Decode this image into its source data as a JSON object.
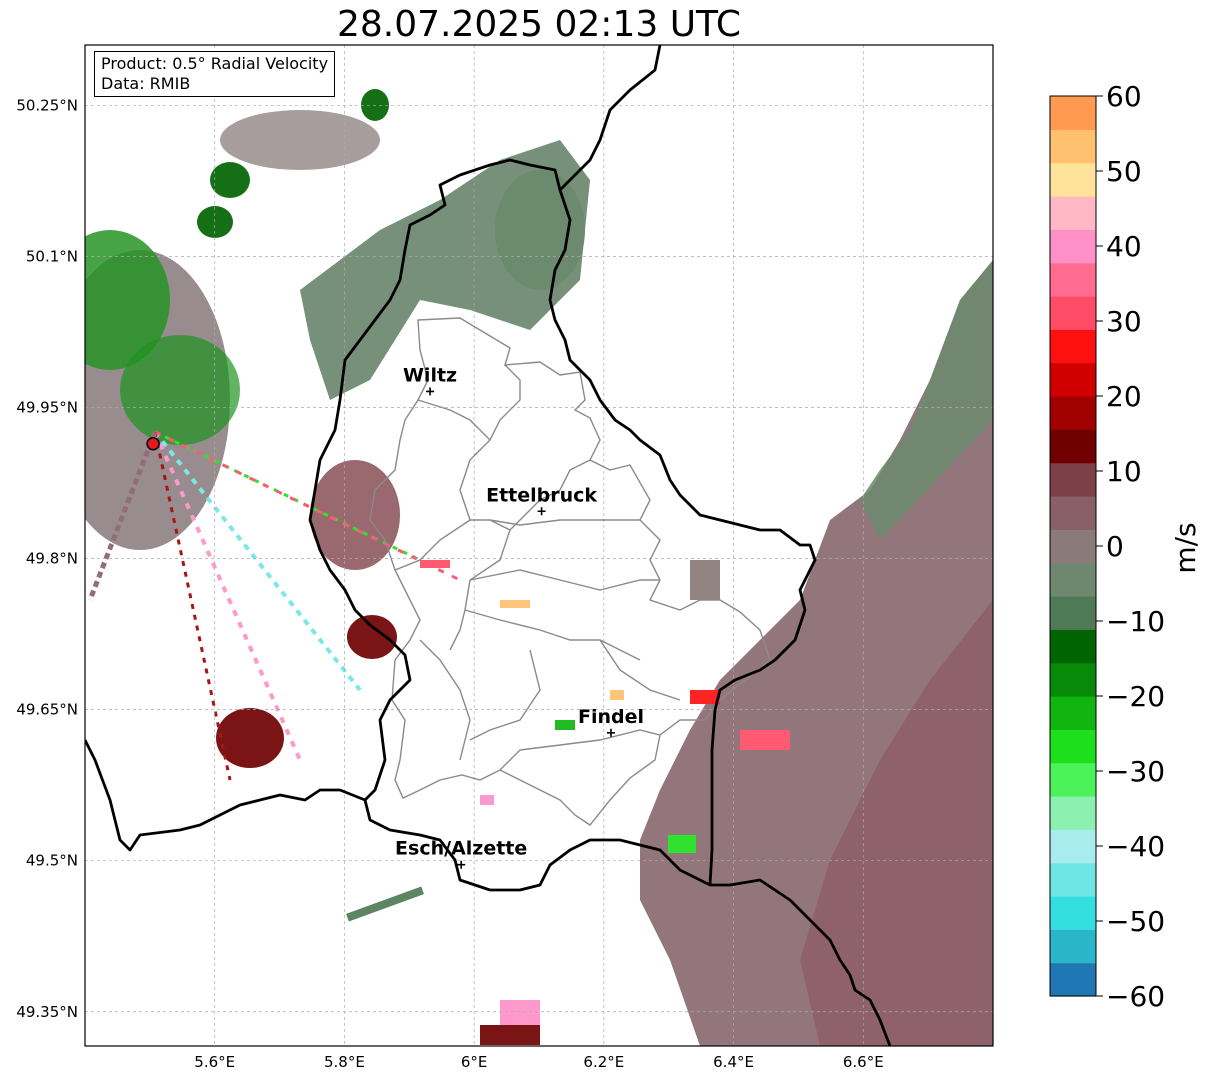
{
  "title": "28.07.2025 02:13 UTC",
  "info": {
    "product": "Product: 0.5° Radial Velocity",
    "source": "Data: RMIB"
  },
  "map": {
    "lon_range": [
      5.4,
      6.8
    ],
    "lat_range": [
      49.316,
      50.31
    ],
    "lon_ticks": [
      {
        "value": 5.6,
        "label": "5.6°E"
      },
      {
        "value": 5.8,
        "label": "5.8°E"
      },
      {
        "value": 6.0,
        "label": "6°E"
      },
      {
        "value": 6.2,
        "label": "6.2°E"
      },
      {
        "value": 6.4,
        "label": "6.4°E"
      },
      {
        "value": 6.6,
        "label": "6.6°E"
      }
    ],
    "lat_ticks": [
      {
        "value": 50.25,
        "label": "50.25°N"
      },
      {
        "value": 50.1,
        "label": "50.1°N"
      },
      {
        "value": 49.95,
        "label": "49.95°N"
      },
      {
        "value": 49.8,
        "label": "49.8°N"
      },
      {
        "value": 49.65,
        "label": "49.65°N"
      },
      {
        "value": 49.5,
        "label": "49.5°N"
      },
      {
        "value": 49.35,
        "label": "49.35°N"
      }
    ],
    "radar_site": {
      "lon": 5.505,
      "lat": 49.914
    },
    "cities": [
      {
        "name": "Wiltz",
        "lon": 5.932,
        "lat": 49.966
      },
      {
        "name": "Ettelbruck",
        "lon": 6.104,
        "lat": 49.847
      },
      {
        "name": "Findel",
        "lon": 6.211,
        "lat": 49.627
      },
      {
        "name": "Esch/Alzette",
        "lon": 5.98,
        "lat": 49.496
      }
    ]
  },
  "colorbar": {
    "label": "m/s",
    "min": -60,
    "max": 60,
    "ticks": [
      "60",
      "50",
      "40",
      "30",
      "20",
      "10",
      "0",
      "−10",
      "−20",
      "−30",
      "−40",
      "−50",
      "−60"
    ],
    "tick_values": [
      60,
      50,
      40,
      30,
      20,
      10,
      0,
      -10,
      -20,
      -30,
      -40,
      -50,
      -60
    ],
    "colors": [
      "#1f77b4",
      "#2ab5c8",
      "#33dfe0",
      "#6fe6e6",
      "#a9ecee",
      "#8cf0b0",
      "#4cf25a",
      "#1ce01c",
      "#10b510",
      "#078a07",
      "#006400",
      "#4f7a56",
      "#6e8870",
      "#8a7a7a",
      "#8a6068",
      "#7d4048",
      "#700000",
      "#a00000",
      "#d00000",
      "#ff1010",
      "#ff4c66",
      "#ff6c90",
      "#ff90c8",
      "#ffb8c4",
      "#ffe39a",
      "#ffc070",
      "#ff9a50"
    ]
  }
}
